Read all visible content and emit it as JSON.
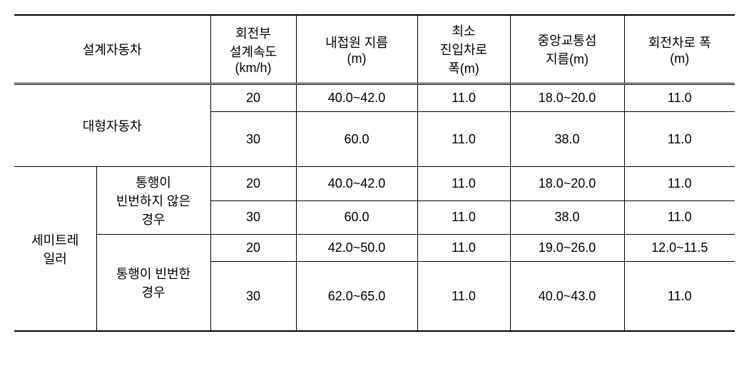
{
  "table": {
    "columns": {
      "col1_2": "설계자동차",
      "col3_line1": "회전부",
      "col3_line2": "설계속도",
      "col3_line3": "(km/h)",
      "col4_line1": "내접원 지름",
      "col4_line2": "(m)",
      "col5_line1": "최소",
      "col5_line2": "진입차로",
      "col5_line3": "폭(m)",
      "col6_line1": "중앙교통섬",
      "col6_line2": "지름(m)",
      "col7_line1": "회전차로 폭",
      "col7_line2": "(m)"
    },
    "group1_label": "대형자동차",
    "group2_label_line1": "세미트레",
    "group2_label_line2": "일러",
    "sub2a_line1": "통행이",
    "sub2a_line2": "빈번하지 않은",
    "sub2a_line3": "경우",
    "sub2b_line1": "통행이 빈번한",
    "sub2b_line2": "경우",
    "rows": [
      {
        "c3": "20",
        "c4": "40.0~42.0",
        "c5": "11.0",
        "c6": "18.0~20.0",
        "c7": "11.0"
      },
      {
        "c3": "30",
        "c4": "60.0",
        "c5": "11.0",
        "c6": "38.0",
        "c7": "11.0"
      },
      {
        "c3": "20",
        "c4": "40.0~42.0",
        "c5": "11.0",
        "c6": "18.0~20.0",
        "c7": "11.0"
      },
      {
        "c3": "30",
        "c4": "60.0",
        "c5": "11.0",
        "c6": "38.0",
        "c7": "11.0"
      },
      {
        "c3": "20",
        "c4": "42.0~50.0",
        "c5": "11.0",
        "c6": "19.0~26.0",
        "c7": "12.0~11.5"
      },
      {
        "c3": "30",
        "c4": "62.0~65.0",
        "c5": "11.0",
        "c6": "40.0~43.0",
        "c7": "11.0"
      }
    ],
    "styling": {
      "border_color": "#000000",
      "heavy_border_width": 2,
      "thin_border_width": 1,
      "font_size": 18,
      "background_color": "#ffffff",
      "text_color": "#000000"
    }
  }
}
